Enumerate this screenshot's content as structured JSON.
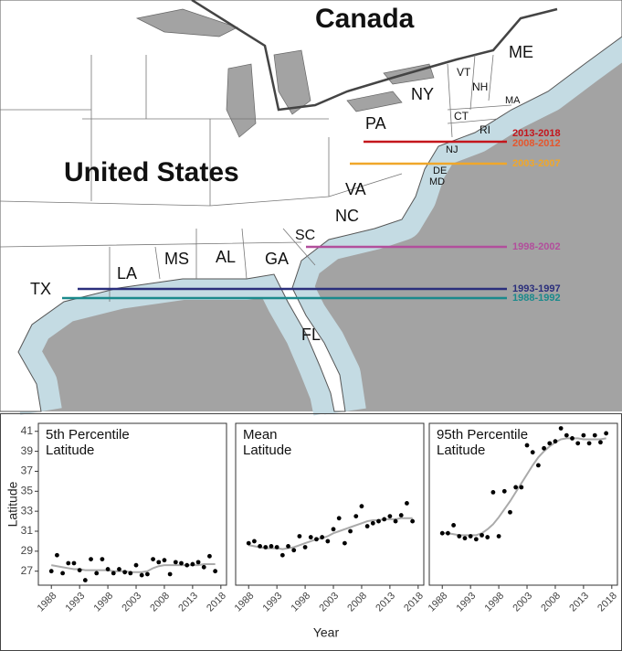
{
  "map": {
    "labels": [
      "Canada",
      "United States",
      "ME",
      "VT",
      "NH",
      "MA",
      "NY",
      "CT",
      "RI",
      "PA",
      "NJ",
      "DE",
      "MD",
      "VA",
      "NC",
      "SC",
      "GA",
      "AL",
      "MS",
      "LA",
      "TX",
      "FL"
    ],
    "ranges": [
      {
        "label": "2013-2018",
        "color": "#c4161c"
      },
      {
        "label": "2008-2012",
        "color": "#e5562d"
      },
      {
        "label": "2003-2007",
        "color": "#f0a72a"
      },
      {
        "label": "1998-2002",
        "color": "#b24f9c"
      },
      {
        "label": "1993-1997",
        "color": "#2b2f7c"
      },
      {
        "label": "1988-1992",
        "color": "#1b8a8c"
      }
    ]
  },
  "chart_data": [
    {
      "type": "scatter",
      "title": "5th Percentile\nLatitude",
      "y_label": "Latitude",
      "x": [
        1988,
        1989,
        1990,
        1991,
        1992,
        1993,
        1994,
        1995,
        1996,
        1997,
        1998,
        1999,
        2000,
        2001,
        2002,
        2003,
        2004,
        2005,
        2006,
        2007,
        2008,
        2009,
        2010,
        2011,
        2012,
        2013,
        2014,
        2015,
        2016,
        2017
      ],
      "values": [
        27.0,
        28.6,
        26.8,
        27.8,
        27.8,
        27.1,
        26.1,
        28.2,
        26.8,
        28.2,
        27.2,
        26.8,
        27.2,
        26.9,
        26.8,
        27.6,
        26.6,
        26.7,
        28.2,
        27.9,
        28.1,
        26.7,
        27.9,
        27.8,
        27.6,
        27.7,
        27.9,
        27.4,
        28.5,
        27.0
      ],
      "trend": [
        27.6,
        27.5,
        27.4,
        27.3,
        27.2,
        27.2,
        27.1,
        27.1,
        27.1,
        27.1,
        27.1,
        27.0,
        27.0,
        27.0,
        26.9,
        26.9,
        26.9,
        27.0,
        27.3,
        27.5,
        27.6,
        27.6,
        27.6,
        27.6,
        27.6,
        27.6,
        27.6,
        27.7,
        27.7,
        27.7
      ],
      "color": "#000000",
      "trend_color": "#aaaaaa",
      "xlim": [
        1985.7,
        2019
      ],
      "xticks": [
        1988,
        1993,
        1998,
        2003,
        2008,
        2013,
        2018
      ],
      "ylim": [
        25.6,
        41.8
      ],
      "yticks": [
        27,
        29,
        31,
        33,
        35,
        37,
        39,
        41
      ]
    },
    {
      "type": "scatter",
      "title": "Mean\nLatitude",
      "x_label": "Year",
      "x": [
        1988,
        1989,
        1990,
        1991,
        1992,
        1993,
        1994,
        1995,
        1996,
        1997,
        1998,
        1999,
        2000,
        2001,
        2002,
        2003,
        2004,
        2005,
        2006,
        2007,
        2008,
        2009,
        2010,
        2011,
        2012,
        2013,
        2014,
        2015,
        2016,
        2017
      ],
      "values": [
        29.8,
        30.0,
        29.5,
        29.4,
        29.5,
        29.4,
        28.6,
        29.5,
        29.1,
        30.5,
        29.4,
        30.4,
        30.2,
        30.4,
        30.0,
        31.2,
        32.3,
        29.8,
        31.0,
        32.5,
        33.5,
        31.5,
        31.8,
        32.0,
        32.2,
        32.5,
        32.0,
        32.6,
        33.8,
        32.0
      ],
      "trend": [
        29.6,
        29.5,
        29.4,
        29.3,
        29.3,
        29.3,
        29.2,
        29.3,
        29.4,
        29.6,
        29.8,
        30.0,
        30.2,
        30.3,
        30.5,
        30.8,
        31.0,
        31.2,
        31.4,
        31.6,
        31.8,
        32.0,
        32.1,
        32.1,
        32.2,
        32.2,
        32.2,
        32.3,
        32.3,
        32.3
      ],
      "color": "#000000",
      "trend_color": "#aaaaaa",
      "xlim": [
        1985.7,
        2019
      ],
      "xticks": [
        1988,
        1993,
        1998,
        2003,
        2008,
        2013,
        2018
      ],
      "ylim": [
        25.6,
        41.8
      ]
    },
    {
      "type": "scatter",
      "title": "95th Percentile\nLatitude",
      "x": [
        1988,
        1989,
        1990,
        1991,
        1992,
        1993,
        1994,
        1995,
        1996,
        1997,
        1998,
        1999,
        2000,
        2001,
        2002,
        2003,
        2004,
        2005,
        2006,
        2007,
        2008,
        2009,
        2010,
        2011,
        2012,
        2013,
        2014,
        2015,
        2016,
        2017
      ],
      "values": [
        30.8,
        30.8,
        31.6,
        30.5,
        30.3,
        30.5,
        30.2,
        30.6,
        30.4,
        34.9,
        30.5,
        35.0,
        32.9,
        35.4,
        35.4,
        39.6,
        38.9,
        37.6,
        39.3,
        39.8,
        40.0,
        41.3,
        40.6,
        40.3,
        39.8,
        40.6,
        39.8,
        40.6,
        39.9,
        40.8
      ],
      "trend": [
        30.8,
        30.8,
        30.7,
        30.6,
        30.6,
        30.6,
        30.6,
        30.8,
        31.2,
        31.7,
        32.4,
        33.2,
        34.0,
        34.9,
        35.8,
        36.7,
        37.6,
        38.4,
        39.0,
        39.5,
        39.9,
        40.2,
        40.3,
        40.3,
        40.3,
        40.2,
        40.2,
        40.2,
        40.2,
        40.3
      ],
      "color": "#000000",
      "trend_color": "#aaaaaa",
      "xlim": [
        1985.7,
        2019
      ],
      "xticks": [
        1988,
        1993,
        1998,
        2003,
        2008,
        2013,
        2018
      ],
      "ylim": [
        25.6,
        41.8
      ]
    }
  ]
}
